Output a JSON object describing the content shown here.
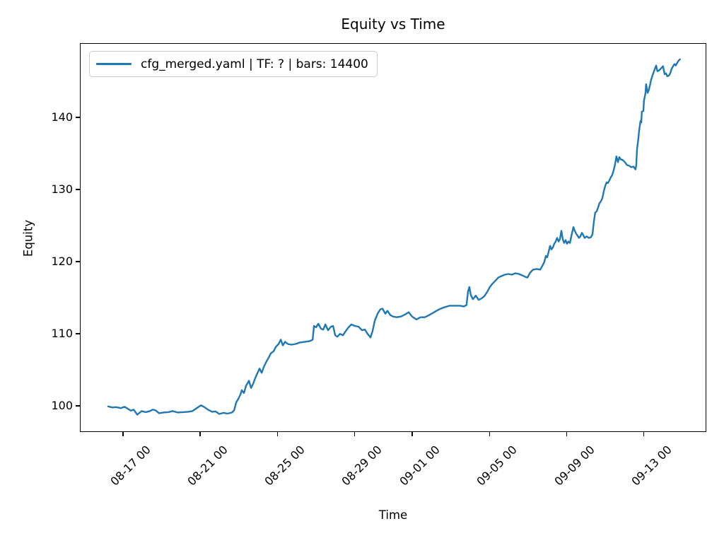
{
  "chart_data": {
    "type": "line",
    "title": "Equity vs Time",
    "xlabel": "Time",
    "ylabel": "Equity",
    "grid": false,
    "legend_position": "upper left",
    "x_unit": "days since 08-17 00:00",
    "xlim": [
      -2.24,
      30.24
    ],
    "ylim": [
      96.4,
      150.3
    ],
    "x_ticks": [
      {
        "d": 0,
        "label": "08-17 00"
      },
      {
        "d": 4,
        "label": "08-21 00"
      },
      {
        "d": 8,
        "label": "08-25 00"
      },
      {
        "d": 12,
        "label": "08-29 00"
      },
      {
        "d": 15,
        "label": "09-01 00"
      },
      {
        "d": 19,
        "label": "09-05 00"
      },
      {
        "d": 23,
        "label": "09-09 00"
      },
      {
        "d": 27,
        "label": "09-13 00"
      }
    ],
    "y_ticks": [
      100,
      110,
      120,
      130,
      140
    ],
    "colors": {
      "line": "#1f77b4",
      "axis": "#000000",
      "legend_border": "#cccccc",
      "background": "#ffffff"
    },
    "series": [
      {
        "name": "cfg_merged.yaml | TF: ? | bars: 14400",
        "color": "#1f77b4",
        "points": [
          [
            -0.81,
            100.05
          ],
          [
            -0.59,
            99.9
          ],
          [
            -0.4,
            99.95
          ],
          [
            -0.15,
            99.8
          ],
          [
            0.04,
            100.0
          ],
          [
            0.22,
            99.7
          ],
          [
            0.37,
            99.45
          ],
          [
            0.51,
            99.6
          ],
          [
            0.7,
            98.9
          ],
          [
            0.92,
            99.4
          ],
          [
            1.14,
            99.25
          ],
          [
            1.36,
            99.4
          ],
          [
            1.5,
            99.6
          ],
          [
            1.65,
            99.5
          ],
          [
            1.83,
            99.1
          ],
          [
            2.05,
            99.2
          ],
          [
            2.31,
            99.25
          ],
          [
            2.53,
            99.4
          ],
          [
            2.79,
            99.2
          ],
          [
            3.08,
            99.25
          ],
          [
            3.33,
            99.3
          ],
          [
            3.56,
            99.4
          ],
          [
            3.78,
            99.8
          ],
          [
            4.0,
            100.2
          ],
          [
            4.18,
            99.95
          ],
          [
            4.36,
            99.6
          ],
          [
            4.58,
            99.3
          ],
          [
            4.76,
            99.35
          ],
          [
            4.95,
            99.0
          ],
          [
            5.17,
            99.15
          ],
          [
            5.39,
            99.05
          ],
          [
            5.61,
            99.2
          ],
          [
            5.72,
            99.5
          ],
          [
            5.83,
            100.6
          ],
          [
            5.94,
            101.1
          ],
          [
            6.05,
            101.7
          ],
          [
            6.12,
            102.3
          ],
          [
            6.23,
            101.9
          ],
          [
            6.34,
            102.9
          ],
          [
            6.49,
            103.6
          ],
          [
            6.6,
            102.6
          ],
          [
            6.71,
            103.2
          ],
          [
            6.85,
            104.2
          ],
          [
            7.04,
            105.3
          ],
          [
            7.15,
            104.7
          ],
          [
            7.26,
            105.5
          ],
          [
            7.4,
            106.3
          ],
          [
            7.51,
            106.8
          ],
          [
            7.62,
            107.4
          ],
          [
            7.77,
            107.7
          ],
          [
            7.88,
            108.3
          ],
          [
            8.03,
            108.7
          ],
          [
            8.14,
            109.3
          ],
          [
            8.25,
            108.5
          ],
          [
            8.36,
            109.0
          ],
          [
            8.5,
            108.7
          ],
          [
            8.69,
            108.6
          ],
          [
            8.91,
            108.7
          ],
          [
            9.13,
            108.9
          ],
          [
            9.38,
            109.0
          ],
          [
            9.64,
            109.1
          ],
          [
            9.79,
            109.3
          ],
          [
            9.86,
            111.2
          ],
          [
            9.97,
            111.0
          ],
          [
            10.08,
            111.5
          ],
          [
            10.23,
            110.8
          ],
          [
            10.34,
            110.7
          ],
          [
            10.45,
            111.4
          ],
          [
            10.59,
            110.6
          ],
          [
            10.74,
            111.1
          ],
          [
            10.85,
            111.2
          ],
          [
            10.96,
            109.9
          ],
          [
            11.07,
            109.7
          ],
          [
            11.21,
            110.1
          ],
          [
            11.36,
            109.9
          ],
          [
            11.51,
            110.5
          ],
          [
            11.65,
            111.0
          ],
          [
            11.8,
            111.4
          ],
          [
            11.98,
            111.2
          ],
          [
            12.17,
            111.1
          ],
          [
            12.35,
            110.6
          ],
          [
            12.5,
            110.7
          ],
          [
            12.64,
            110.1
          ],
          [
            12.79,
            109.6
          ],
          [
            12.9,
            110.5
          ],
          [
            13.01,
            111.9
          ],
          [
            13.16,
            112.9
          ],
          [
            13.3,
            113.5
          ],
          [
            13.41,
            113.6
          ],
          [
            13.56,
            112.9
          ],
          [
            13.67,
            113.3
          ],
          [
            13.82,
            112.7
          ],
          [
            13.96,
            112.5
          ],
          [
            14.15,
            112.4
          ],
          [
            14.37,
            112.5
          ],
          [
            14.59,
            112.8
          ],
          [
            14.77,
            113.1
          ],
          [
            14.95,
            112.5
          ],
          [
            15.17,
            112.1
          ],
          [
            15.39,
            112.4
          ],
          [
            15.61,
            112.4
          ],
          [
            15.83,
            112.7
          ],
          [
            16.09,
            113.1
          ],
          [
            16.35,
            113.5
          ],
          [
            16.64,
            113.8
          ],
          [
            16.9,
            114.0
          ],
          [
            17.19,
            114.0
          ],
          [
            17.44,
            114.0
          ],
          [
            17.63,
            113.9
          ],
          [
            17.77,
            114.1
          ],
          [
            17.85,
            116.0
          ],
          [
            17.92,
            116.6
          ],
          [
            17.99,
            115.5
          ],
          [
            18.1,
            114.9
          ],
          [
            18.25,
            115.4
          ],
          [
            18.4,
            114.8
          ],
          [
            18.54,
            115.0
          ],
          [
            18.69,
            115.3
          ],
          [
            18.84,
            115.9
          ],
          [
            18.98,
            116.6
          ],
          [
            19.13,
            117.1
          ],
          [
            19.28,
            117.5
          ],
          [
            19.42,
            117.9
          ],
          [
            19.57,
            118.1
          ],
          [
            19.75,
            118.3
          ],
          [
            19.94,
            118.4
          ],
          [
            20.12,
            118.3
          ],
          [
            20.3,
            118.5
          ],
          [
            20.49,
            118.4
          ],
          [
            20.67,
            118.2
          ],
          [
            20.82,
            118.0
          ],
          [
            20.93,
            117.9
          ],
          [
            21.07,
            118.6
          ],
          [
            21.22,
            119.0
          ],
          [
            21.4,
            119.1
          ],
          [
            21.59,
            119.0
          ],
          [
            21.7,
            119.5
          ],
          [
            21.81,
            120.1
          ],
          [
            21.88,
            120.9
          ],
          [
            21.95,
            120.7
          ],
          [
            22.03,
            121.5
          ],
          [
            22.1,
            122.3
          ],
          [
            22.17,
            121.8
          ],
          [
            22.25,
            122.1
          ],
          [
            22.32,
            122.6
          ],
          [
            22.39,
            122.9
          ],
          [
            22.47,
            123.4
          ],
          [
            22.54,
            122.9
          ],
          [
            22.61,
            123.2
          ],
          [
            22.69,
            124.4
          ],
          [
            22.76,
            123.2
          ],
          [
            22.83,
            122.7
          ],
          [
            22.91,
            123.1
          ],
          [
            22.98,
            122.6
          ],
          [
            23.05,
            122.9
          ],
          [
            23.13,
            122.7
          ],
          [
            23.2,
            123.6
          ],
          [
            23.31,
            124.9
          ],
          [
            23.38,
            124.4
          ],
          [
            23.45,
            124.0
          ],
          [
            23.53,
            123.7
          ],
          [
            23.6,
            123.4
          ],
          [
            23.67,
            123.6
          ],
          [
            23.75,
            124.1
          ],
          [
            23.82,
            123.8
          ],
          [
            23.89,
            123.4
          ],
          [
            24.0,
            123.6
          ],
          [
            24.11,
            123.4
          ],
          [
            24.22,
            123.5
          ],
          [
            24.3,
            123.9
          ],
          [
            24.37,
            125.6
          ],
          [
            24.44,
            126.9
          ],
          [
            24.52,
            127.1
          ],
          [
            24.59,
            127.6
          ],
          [
            24.66,
            128.2
          ],
          [
            24.74,
            128.5
          ],
          [
            24.81,
            128.9
          ],
          [
            24.88,
            129.8
          ],
          [
            24.96,
            130.6
          ],
          [
            25.03,
            131.1
          ],
          [
            25.1,
            131.0
          ],
          [
            25.18,
            131.4
          ],
          [
            25.25,
            131.8
          ],
          [
            25.32,
            132.1
          ],
          [
            25.4,
            132.8
          ],
          [
            25.47,
            133.6
          ],
          [
            25.54,
            134.7
          ],
          [
            25.62,
            133.9
          ],
          [
            25.69,
            134.6
          ],
          [
            25.76,
            134.3
          ],
          [
            25.87,
            134.2
          ],
          [
            25.98,
            133.9
          ],
          [
            26.09,
            133.5
          ],
          [
            26.2,
            133.4
          ],
          [
            26.31,
            133.2
          ],
          [
            26.42,
            133.3
          ],
          [
            26.53,
            132.9
          ],
          [
            26.57,
            133.5
          ],
          [
            26.61,
            135.7
          ],
          [
            26.68,
            137.2
          ],
          [
            26.72,
            138.3
          ],
          [
            26.79,
            139.6
          ],
          [
            26.83,
            139.4
          ],
          [
            26.86,
            140.9
          ],
          [
            26.94,
            141.0
          ],
          [
            26.97,
            142.4
          ],
          [
            27.05,
            143.5
          ],
          [
            27.08,
            144.7
          ],
          [
            27.16,
            143.5
          ],
          [
            27.23,
            144.0
          ],
          [
            27.3,
            144.8
          ],
          [
            27.34,
            145.3
          ],
          [
            27.41,
            145.9
          ],
          [
            27.49,
            146.5
          ],
          [
            27.6,
            147.3
          ],
          [
            27.67,
            146.5
          ],
          [
            27.74,
            146.6
          ],
          [
            27.82,
            146.8
          ],
          [
            27.89,
            147.0
          ],
          [
            27.96,
            147.2
          ],
          [
            28.04,
            146.1
          ],
          [
            28.11,
            146.2
          ],
          [
            28.18,
            145.8
          ],
          [
            28.26,
            145.9
          ],
          [
            28.33,
            146.2
          ],
          [
            28.4,
            146.8
          ],
          [
            28.48,
            147.2
          ],
          [
            28.55,
            147.5
          ],
          [
            28.62,
            147.3
          ],
          [
            28.7,
            147.7
          ],
          [
            28.77,
            148.0
          ],
          [
            28.84,
            148.15
          ]
        ]
      }
    ]
  }
}
